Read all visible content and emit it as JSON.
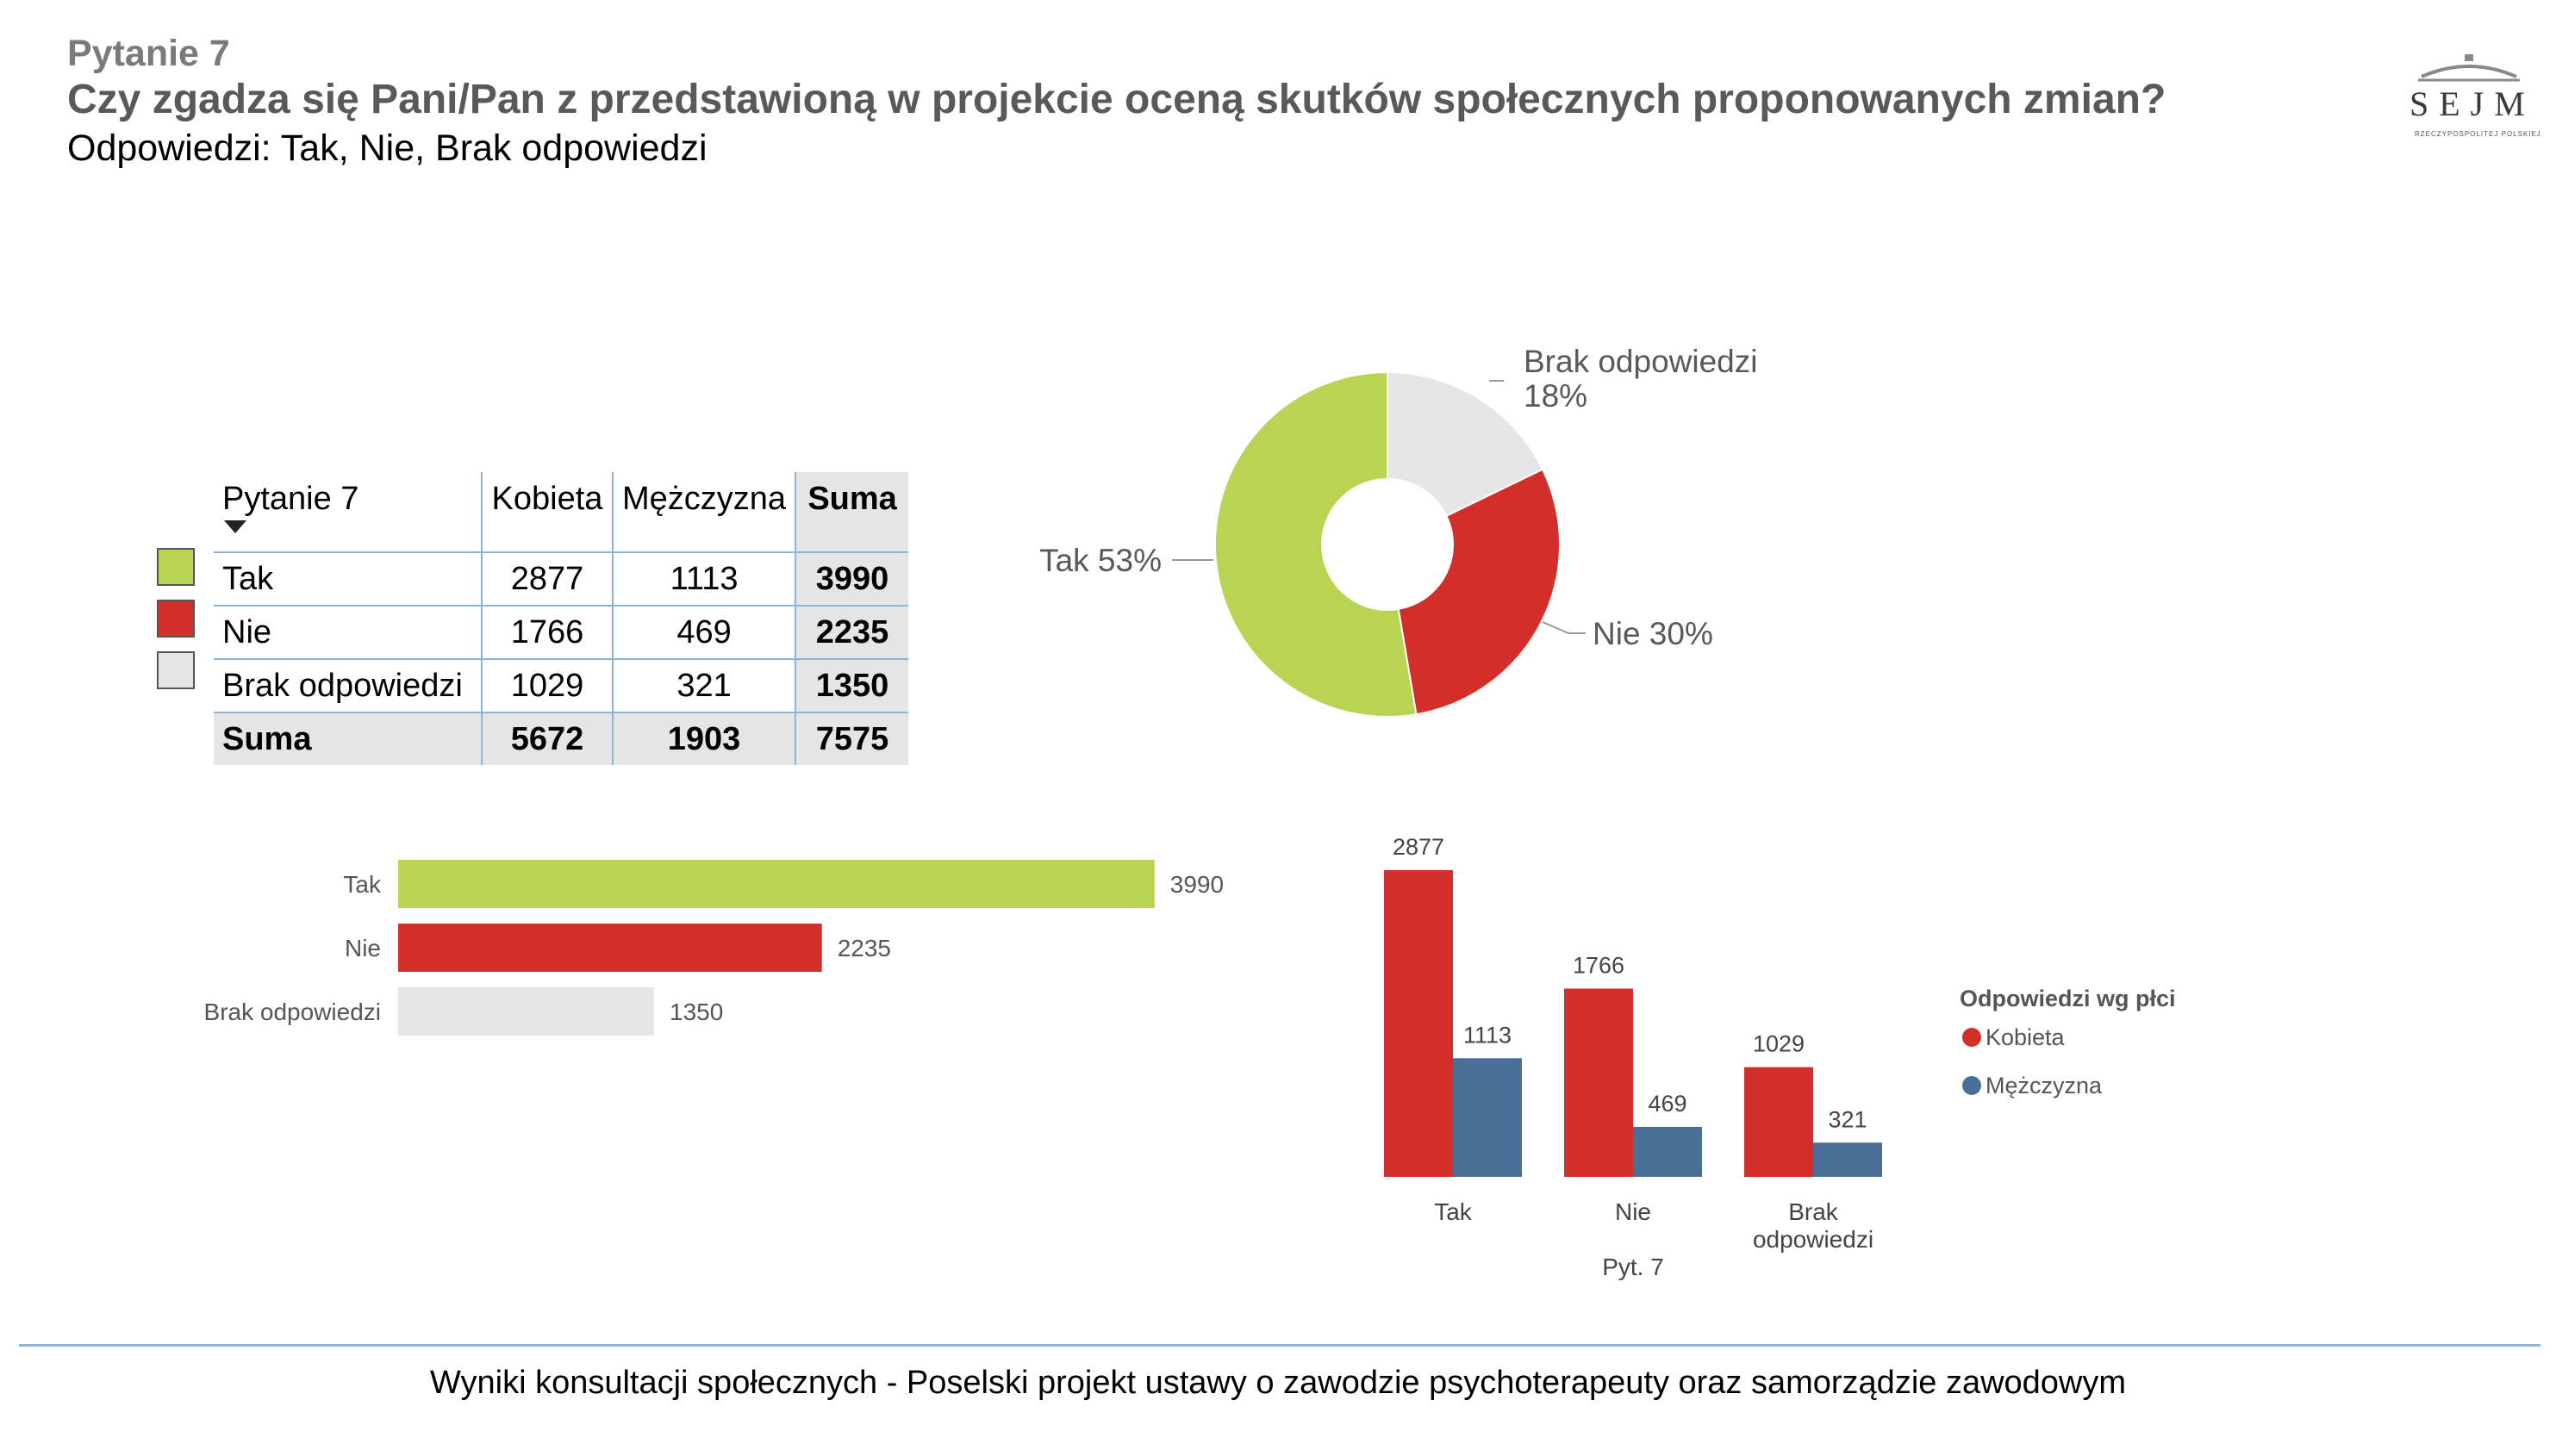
{
  "header": {
    "question_number": "Pytanie 7",
    "question_title": "Czy zgadza się Pani/Pan z przedstawioną w projekcie oceną skutków społecznych  proponowanych zmian?",
    "answers_line": "Odpowiedzi: Tak,  Nie, Brak odpowiedzi"
  },
  "logo": {
    "text": "SEJM",
    "subtext": "RZECZYPOSPOLITEJ POLSKIEJ",
    "icon": "sejm-logo-icon"
  },
  "colors": {
    "tak": "#b8d452",
    "nie": "#d32f2a",
    "brak": "#e6e6e6",
    "kobieta": "#d32f2a",
    "mezczyzna": "#4a6f96",
    "rule": "#8fb2d9"
  },
  "table": {
    "headers": [
      "Pytanie 7",
      "Kobieta",
      "Mężczyzna",
      "Suma"
    ],
    "rows": [
      {
        "label": "Tak",
        "kobieta": "2877",
        "mezczyzna": "1113",
        "suma": "3990"
      },
      {
        "label": "Nie",
        "kobieta": "1766",
        "mezczyzna": "469",
        "suma": "2235"
      },
      {
        "label": "Brak odpowiedzi",
        "kobieta": "1029",
        "mezczyzna": "321",
        "suma": "1350"
      },
      {
        "label": "Suma",
        "kobieta": "5672",
        "mezczyzna": "1903",
        "suma": "7575"
      }
    ]
  },
  "chart_data": [
    {
      "type": "pie",
      "title": "",
      "donut": true,
      "slices": [
        {
          "label": "Brak odpowiedzi",
          "percent_label": "18%",
          "value": 1350
        },
        {
          "label": "Nie",
          "percent_label": "30%",
          "value": 2235
        },
        {
          "label": "Tak",
          "percent_label": "53%",
          "value": 3990
        }
      ],
      "labels": [
        "Brak odpowiedzi\n18%",
        "Nie 30%",
        "Tak 53%"
      ]
    },
    {
      "type": "bar",
      "orientation": "horizontal",
      "title": "",
      "categories": [
        "Tak",
        "Nie",
        "Brak odpowiedzi"
      ],
      "values": [
        3990,
        2235,
        1350
      ],
      "xlim": [
        0,
        4000
      ]
    },
    {
      "type": "bar",
      "orientation": "vertical",
      "title": "",
      "xlabel": "Pyt. 7",
      "categories": [
        "Tak",
        "Nie",
        "Brak odpowiedzi"
      ],
      "category_lines": [
        [
          "Tak"
        ],
        [
          "Nie"
        ],
        [
          "Brak",
          "odpowiedzi"
        ]
      ],
      "series": [
        {
          "name": "Kobieta",
          "values": [
            2877,
            1766,
            1029
          ]
        },
        {
          "name": "Mężczyzna",
          "values": [
            1113,
            469,
            321
          ]
        }
      ],
      "ylim": [
        0,
        2877
      ],
      "legend_title": "Odpowiedzi wg płci",
      "legend_position": "right"
    }
  ],
  "footer": {
    "text": "Wyniki konsultacji społecznych - Poselski projekt ustawy o zawodzie psychoterapeuty oraz samorządzie zawodowym"
  }
}
